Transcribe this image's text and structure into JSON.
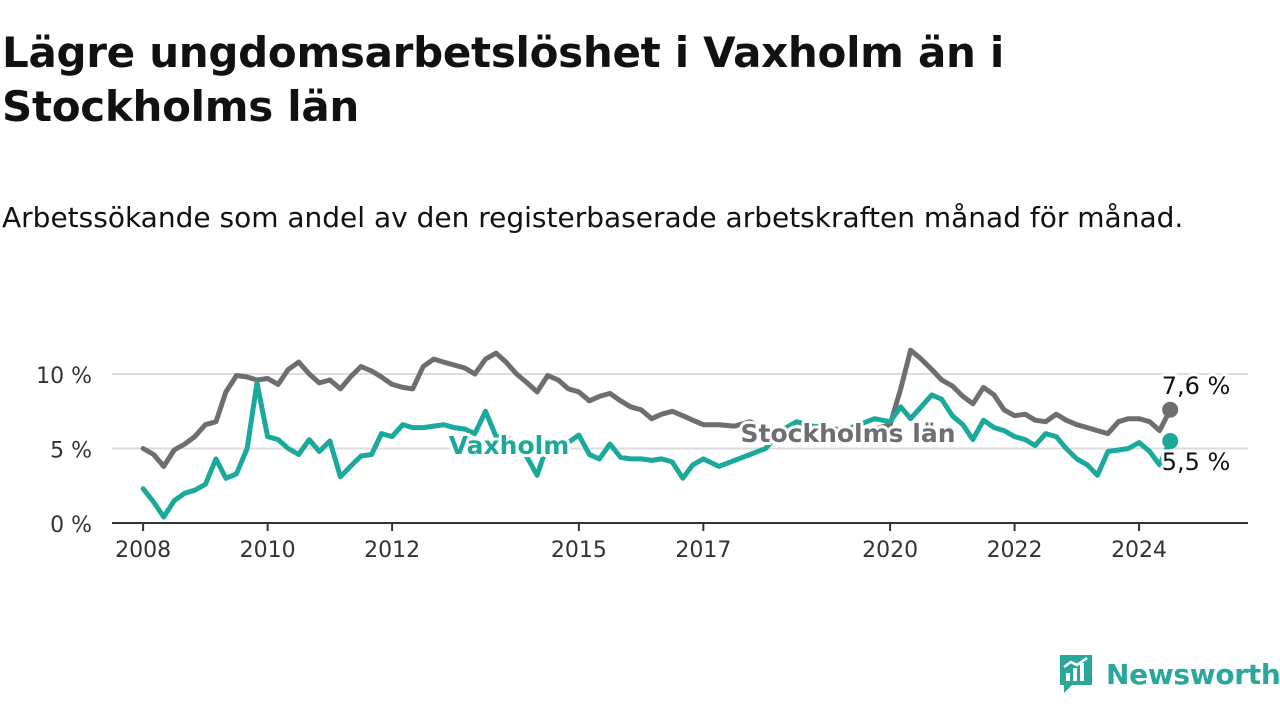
{
  "title": "Lägre ungdomsarbetslöshet i Vaxholm än i Stockholms län",
  "subtitle": "Arbetssökande som andel av den registerbaserade arbetskraften månad för månad.",
  "brand": "Newsworthy",
  "colors": {
    "vaxholm": "#1aa99b",
    "stockholm": "#6e6d72",
    "axis": "#333333",
    "grid": "#dddddd"
  },
  "chart_data": {
    "type": "line",
    "title": "Lägre ungdomsarbetslöshet i Vaxholm än i Stockholms län",
    "xlabel": "",
    "ylabel": "",
    "xlim": [
      2007.5,
      2025.75
    ],
    "ylim": [
      0,
      10
    ],
    "y_ticks": [
      0,
      5,
      10
    ],
    "y_tick_labels": [
      "0 %",
      "5 %",
      "10 %"
    ],
    "x_ticks": [
      2008,
      2010,
      2012,
      2015,
      2017,
      2020,
      2022,
      2024
    ],
    "x_tick_labels": [
      "2008",
      "2010",
      "2012",
      "2015",
      "2017",
      "2020",
      "2022",
      "2024"
    ],
    "grid": true,
    "series": [
      {
        "name": "Stockholms län",
        "label": "Stockholms län",
        "end_label": "7,6 %",
        "x": [
          2008.0,
          2008.17,
          2008.33,
          2008.5,
          2008.67,
          2008.83,
          2009.0,
          2009.17,
          2009.33,
          2009.5,
          2009.67,
          2009.83,
          2010.0,
          2010.17,
          2010.33,
          2010.5,
          2010.67,
          2010.83,
          2011.0,
          2011.17,
          2011.33,
          2011.5,
          2011.67,
          2011.83,
          2012.0,
          2012.17,
          2012.33,
          2012.5,
          2012.67,
          2012.83,
          2013.0,
          2013.17,
          2013.33,
          2013.5,
          2013.67,
          2013.83,
          2014.0,
          2014.17,
          2014.33,
          2014.5,
          2014.67,
          2014.83,
          2015.0,
          2015.17,
          2015.33,
          2015.5,
          2015.67,
          2015.83,
          2016.0,
          2016.17,
          2016.33,
          2016.5,
          2016.67,
          2016.83,
          2017.0,
          2017.25,
          2017.5,
          2017.75,
          2018.0,
          2018.25,
          2018.5,
          2018.75,
          2019.0,
          2019.25,
          2019.5,
          2019.75,
          2020.0,
          2020.17,
          2020.33,
          2020.5,
          2020.67,
          2020.83,
          2021.0,
          2021.17,
          2021.33,
          2021.5,
          2021.67,
          2021.83,
          2022.0,
          2022.17,
          2022.33,
          2022.5,
          2022.67,
          2022.83,
          2023.0,
          2023.17,
          2023.33,
          2023.5,
          2023.67,
          2023.83,
          2024.0,
          2024.17,
          2024.33,
          2024.5
        ],
        "values": [
          5.0,
          4.6,
          3.8,
          4.9,
          5.3,
          5.8,
          6.6,
          6.8,
          8.8,
          9.9,
          9.8,
          9.6,
          9.7,
          9.3,
          10.3,
          10.8,
          10.0,
          9.4,
          9.6,
          9.0,
          9.8,
          10.5,
          10.2,
          9.8,
          9.3,
          9.1,
          9.0,
          10.5,
          11.0,
          10.8,
          10.6,
          10.4,
          10.0,
          11.0,
          11.4,
          10.8,
          10.0,
          9.4,
          8.8,
          9.9,
          9.6,
          9.0,
          8.8,
          8.2,
          8.5,
          8.7,
          8.2,
          7.8,
          7.6,
          7.0,
          7.3,
          7.5,
          7.2,
          6.9,
          6.6,
          6.6,
          6.5,
          6.8,
          6.3,
          6.2,
          6.1,
          6.3,
          6.2,
          6.0,
          6.1,
          6.3,
          6.6,
          9.0,
          11.6,
          11.0,
          10.3,
          9.6,
          9.2,
          8.5,
          8.0,
          9.1,
          8.6,
          7.6,
          7.2,
          7.3,
          6.9,
          6.8,
          7.3,
          6.9,
          6.6,
          6.4,
          6.2,
          6.0,
          6.8,
          7.0,
          7.0,
          6.8,
          6.2,
          7.6
        ]
      },
      {
        "name": "Vaxholm",
        "label": "Vaxholm",
        "end_label": "5,5 %",
        "x": [
          2008.0,
          2008.17,
          2008.33,
          2008.5,
          2008.67,
          2008.83,
          2009.0,
          2009.17,
          2009.33,
          2009.5,
          2009.67,
          2009.83,
          2010.0,
          2010.17,
          2010.33,
          2010.5,
          2010.67,
          2010.83,
          2011.0,
          2011.17,
          2011.33,
          2011.5,
          2011.67,
          2011.83,
          2012.0,
          2012.17,
          2012.33,
          2012.5,
          2012.67,
          2012.83,
          2013.0,
          2013.17,
          2013.33,
          2013.5,
          2013.67,
          2013.83,
          2014.0,
          2014.17,
          2014.33,
          2014.5,
          2014.67,
          2014.83,
          2015.0,
          2015.17,
          2015.33,
          2015.5,
          2015.67,
          2015.83,
          2016.0,
          2016.17,
          2016.33,
          2016.5,
          2016.67,
          2016.83,
          2017.0,
          2017.25,
          2017.5,
          2017.75,
          2018.0,
          2018.25,
          2018.5,
          2018.75,
          2019.0,
          2019.25,
          2019.5,
          2019.75,
          2020.0,
          2020.17,
          2020.33,
          2020.5,
          2020.67,
          2020.83,
          2021.0,
          2021.17,
          2021.33,
          2021.5,
          2021.67,
          2021.83,
          2022.0,
          2022.17,
          2022.33,
          2022.5,
          2022.67,
          2022.83,
          2023.0,
          2023.17,
          2023.33,
          2023.5,
          2023.67,
          2023.83,
          2024.0,
          2024.17,
          2024.33,
          2024.5
        ],
        "values": [
          2.3,
          1.4,
          0.4,
          1.5,
          2.0,
          2.2,
          2.6,
          4.3,
          3.0,
          3.3,
          5.0,
          9.4,
          5.8,
          5.6,
          5.0,
          4.6,
          5.6,
          4.8,
          5.5,
          3.1,
          3.8,
          4.5,
          4.6,
          6.0,
          5.8,
          6.6,
          6.4,
          6.4,
          6.5,
          6.6,
          6.4,
          6.3,
          6.0,
          7.5,
          5.8,
          5.8,
          5.2,
          4.4,
          3.2,
          5.3,
          5.0,
          5.4,
          5.9,
          4.6,
          4.3,
          5.3,
          4.4,
          4.3,
          4.3,
          4.2,
          4.3,
          4.1,
          3.0,
          3.9,
          4.3,
          3.8,
          4.2,
          4.6,
          5.0,
          6.2,
          6.8,
          6.5,
          6.4,
          6.2,
          6.6,
          7.0,
          6.8,
          7.8,
          7.0,
          7.8,
          8.6,
          8.3,
          7.2,
          6.6,
          5.6,
          6.9,
          6.4,
          6.2,
          5.8,
          5.6,
          5.2,
          6.0,
          5.8,
          5.0,
          4.3,
          3.9,
          3.2,
          4.8,
          4.9,
          5.0,
          5.4,
          4.8,
          3.9,
          5.5
        ]
      }
    ]
  }
}
